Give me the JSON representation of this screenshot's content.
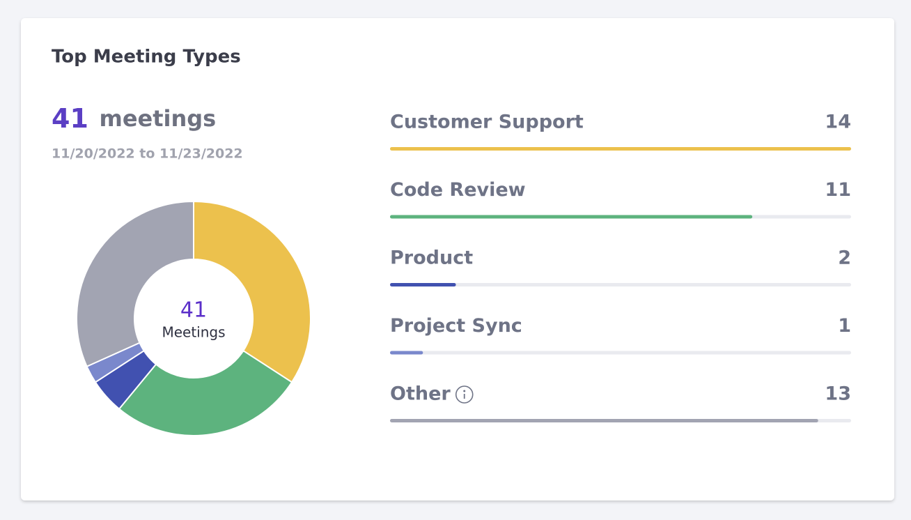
{
  "chart_data": {
    "type": "donut",
    "title": "Top Meeting Types",
    "total": 41,
    "total_unit": "meetings",
    "date_range": "11/20/2022 to 11/23/2022",
    "center_label": "Meetings",
    "categories": [
      "Customer Support",
      "Code Review",
      "Product",
      "Project Sync",
      "Other"
    ],
    "values": [
      14,
      11,
      2,
      1,
      13
    ],
    "colors": [
      "#ecc14d",
      "#5db37e",
      "#4151b0",
      "#7a88cc",
      "#a2a4b2"
    ]
  }
}
